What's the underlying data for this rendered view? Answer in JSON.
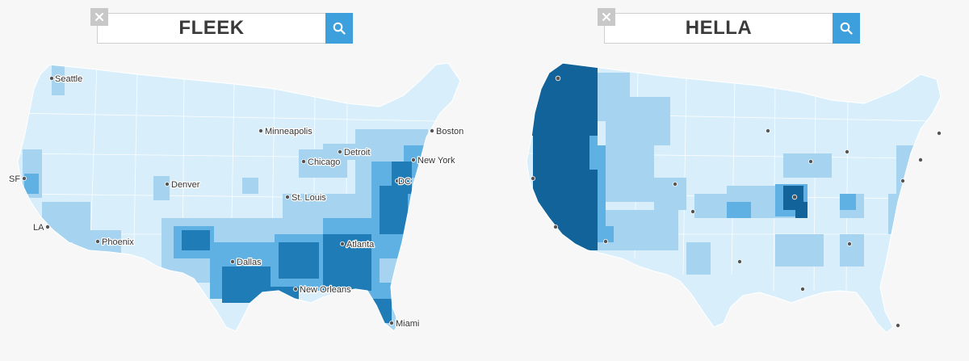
{
  "colors": {
    "background": "#f7f7f7",
    "level_0": "#d8eefa",
    "level_1": "#a6d3ef",
    "level_2": "#5fb0e3",
    "level_3": "#1f7cb7",
    "level_4": "#11639a",
    "search_button": "#3d9fdc",
    "clear_button": "#c8c8c8"
  },
  "left_map": {
    "search_term": "FLEEK",
    "clear_icon": "close-icon",
    "search_icon": "search-icon",
    "cities": {
      "seattle": "Seattle",
      "minneapolis": "Minneapolis",
      "boston": "Boston",
      "detroit": "Detroit",
      "new_york": "New York",
      "chicago": "Chicago",
      "sf": "SF",
      "denver": "Denver",
      "dc": "DC",
      "st_louis": "St. Louis",
      "la": "LA",
      "phoenix": "Phoenix",
      "atlanta": "Atlanta",
      "dallas": "Dallas",
      "new_orleans": "New Orleans",
      "miami": "Miami"
    }
  },
  "right_map": {
    "search_term": "HELLA",
    "clear_icon": "close-icon",
    "search_icon": "search-icon"
  }
}
